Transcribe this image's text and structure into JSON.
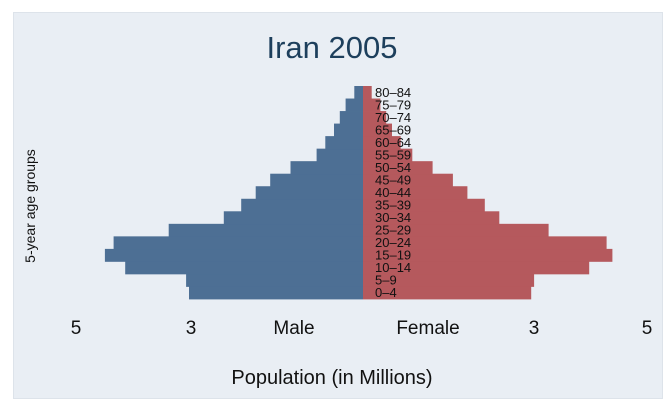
{
  "chart_data": {
    "type": "bar",
    "orientation": "horizontal",
    "title": "Iran 2005",
    "xlabel": "Population (in Millions)",
    "ylabel": "5-year age groups",
    "side_labels": {
      "left": "Male",
      "right": "Female"
    },
    "xticks": [
      "5",
      "3",
      "3",
      "5"
    ],
    "xlim": [
      -5,
      5
    ],
    "grid": false,
    "legend": "none",
    "categories": [
      "0–4",
      "5–9",
      "10–14",
      "15–19",
      "20–24",
      "25–29",
      "30–34",
      "35–39",
      "40–44",
      "45–49",
      "50–54",
      "55–59",
      "60–64",
      "65–69",
      "70–74",
      "75–79",
      "80–84"
    ],
    "series": [
      {
        "name": "Male",
        "values": [
          3.0,
          3.05,
          4.1,
          4.45,
          4.3,
          3.35,
          2.4,
          2.1,
          1.85,
          1.6,
          1.25,
          0.8,
          0.65,
          0.5,
          0.4,
          0.3,
          0.15
        ]
      },
      {
        "name": "Female",
        "values": [
          2.9,
          2.95,
          3.9,
          4.3,
          4.2,
          3.2,
          2.35,
          2.1,
          1.8,
          1.55,
          1.2,
          0.85,
          0.65,
          0.5,
          0.4,
          0.3,
          0.15
        ]
      }
    ],
    "colors": {
      "male": "#4d6f94",
      "female": "#b5595d",
      "title": "#1d3f5c",
      "background": "#e9eef4"
    }
  }
}
